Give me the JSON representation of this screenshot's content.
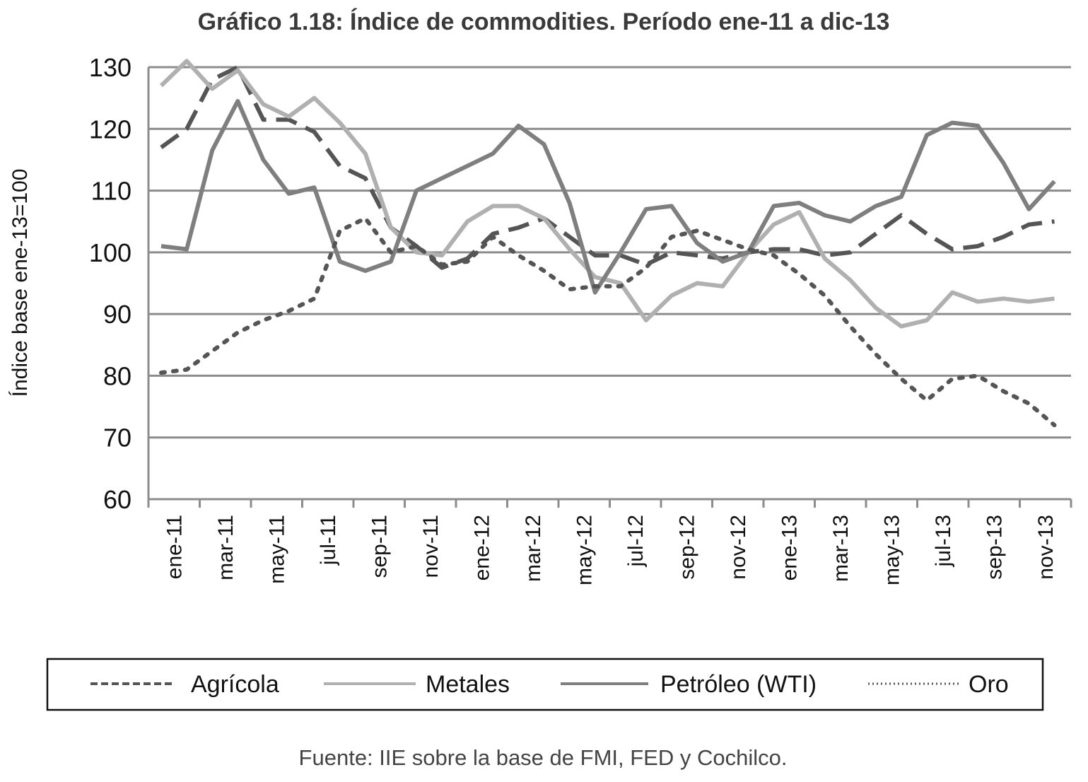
{
  "chart_data": {
    "type": "line",
    "title": "Gráfico 1.18: Índice de commodities. Período ene-11 a dic-13",
    "ylabel": "Índice base ene-13=100",
    "xlabel": "",
    "ylim": [
      60,
      130
    ],
    "yticks": [
      "60",
      "70",
      "80",
      "90",
      "100",
      "110",
      "120",
      "130"
    ],
    "grid": "horizontal",
    "legend_position": "bottom",
    "x": [
      "ene-11",
      "feb-11",
      "mar-11",
      "abr-11",
      "may-11",
      "jun-11",
      "jul-11",
      "ago-11",
      "sep-11",
      "oct-11",
      "nov-11",
      "dic-11",
      "ene-12",
      "feb-12",
      "mar-12",
      "abr-12",
      "may-12",
      "jun-12",
      "jul-12",
      "ago-12",
      "sep-12",
      "oct-12",
      "nov-12",
      "dic-12",
      "ene-13",
      "feb-13",
      "mar-13",
      "abr-13",
      "may-13",
      "jun-13",
      "jul-13",
      "ago-13",
      "sep-13",
      "oct-13",
      "nov-13",
      "dic-13"
    ],
    "xtick_labels": [
      "ene-11",
      "mar-11",
      "may-11",
      "jul-11",
      "sep-11",
      "nov-11",
      "ene-12",
      "mar-12",
      "may-12",
      "jul-12",
      "sep-12",
      "nov-12",
      "ene-13",
      "mar-13",
      "may-13",
      "jul-13",
      "sep-13",
      "nov-13"
    ],
    "series": [
      {
        "name": "Agrícola",
        "style": "dashed",
        "color": "#555555",
        "values": [
          117,
          120,
          128,
          130,
          121.5,
          121.5,
          119.5,
          114,
          112,
          104,
          101,
          97.5,
          99,
          103,
          104,
          105.5,
          102.5,
          99.5,
          99.5,
          98,
          100,
          99.5,
          99,
          100,
          100.5,
          100.5,
          99.5,
          100,
          103,
          106,
          103,
          100.5,
          101,
          102.5,
          104.5,
          105
        ]
      },
      {
        "name": "Metales",
        "style": "solid",
        "color": "#b0b0b0",
        "values": [
          127,
          131,
          126.5,
          129.5,
          124,
          122,
          125,
          121,
          116,
          104,
          100,
          99.5,
          105,
          107.5,
          107.5,
          105.5,
          100.5,
          96,
          95,
          89,
          93,
          95,
          94.5,
          100,
          104.5,
          106.5,
          99,
          95.5,
          91,
          88,
          89,
          93.5,
          92,
          92.5,
          92,
          92.5
        ]
      },
      {
        "name": "Petróleo (WTI)",
        "style": "solid",
        "color": "#7f7f7f",
        "values": [
          101,
          100.5,
          116.5,
          124.5,
          115,
          109.5,
          110.5,
          98.5,
          97,
          98.5,
          110,
          112,
          114,
          116,
          120.5,
          117.5,
          108,
          93.5,
          100,
          107,
          107.5,
          101.5,
          98.5,
          100,
          107.5,
          108,
          106,
          105,
          107.5,
          109,
          119,
          121,
          120.5,
          114.5,
          107,
          111.5
        ]
      },
      {
        "name": "Oro",
        "style": "dotted",
        "color": "#555555",
        "values": [
          80.5,
          81,
          84,
          87,
          89,
          90.5,
          92.5,
          103.5,
          105.5,
          100,
          101,
          98,
          98.5,
          102.5,
          99.5,
          97,
          94,
          94.5,
          94.5,
          97.5,
          102.5,
          103.5,
          102,
          100.5,
          99.5,
          96.5,
          93,
          88,
          83.5,
          79.5,
          76,
          79.5,
          80,
          77.5,
          75.5,
          72
        ]
      }
    ]
  },
  "source_note": "Fuente: IIE sobre la base de FMI, FED y Cochilco."
}
